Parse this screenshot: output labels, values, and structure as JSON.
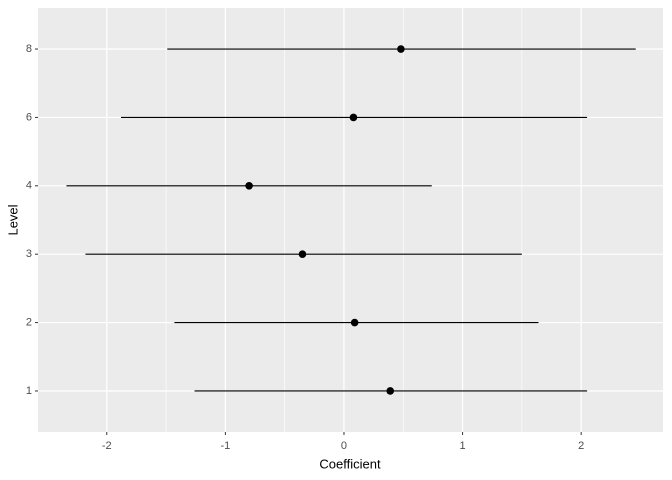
{
  "chart_data": {
    "type": "pointrange",
    "x_label": "Coefficient",
    "y_label": "Level",
    "categories": [
      "1",
      "2",
      "3",
      "4",
      "6",
      "8"
    ],
    "values": [
      0.39,
      0.09,
      -0.35,
      -0.8,
      0.08,
      0.48
    ],
    "lower": [
      -1.26,
      -1.43,
      -2.18,
      -2.34,
      -1.88,
      -1.49
    ],
    "upper": [
      2.05,
      1.64,
      1.5,
      0.74,
      2.05,
      2.46
    ],
    "color": "#000000",
    "xlim": [
      -2.58,
      2.69
    ],
    "xticks": [
      -2,
      -1,
      0,
      1,
      2
    ],
    "grid": true
  }
}
